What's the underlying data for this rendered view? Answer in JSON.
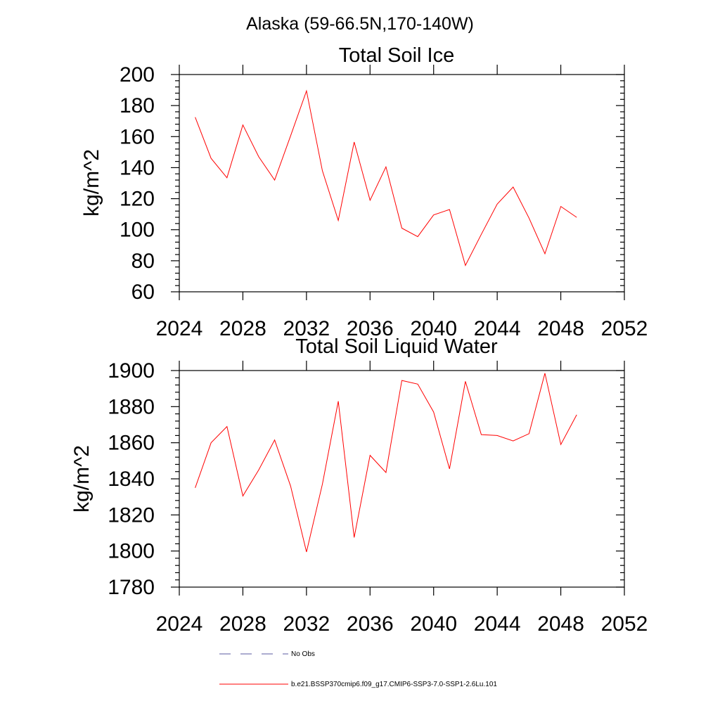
{
  "suptitle": "Alaska (59-66.5N,170-140W)",
  "chart_data": [
    {
      "type": "line",
      "title": "Total Soil Ice",
      "ylabel": "kg/m^2",
      "xlim": [
        2024,
        2052
      ],
      "ylim": [
        60,
        200
      ],
      "xticks": [
        2024,
        2028,
        2032,
        2036,
        2040,
        2044,
        2048,
        2052
      ],
      "yticks": [
        60,
        80,
        100,
        120,
        140,
        160,
        180,
        200
      ],
      "series": [
        {
          "name": "b.e21.BSSP370cmip6.f09_g17.CMIP6-SSP3-7.0-SSP1-2.6Lu.101",
          "color": "#ff0000",
          "x": [
            2025,
            2026,
            2027,
            2028,
            2029,
            2030,
            2031,
            2032,
            2033,
            2034,
            2035,
            2036,
            2037,
            2038,
            2039,
            2040,
            2041,
            2042,
            2043,
            2044,
            2045,
            2046,
            2047,
            2048,
            2049
          ],
          "y": [
            172.5,
            146,
            133.5,
            167.5,
            147,
            132,
            160.5,
            189.5,
            138,
            106,
            156.5,
            119,
            140.5,
            101,
            95.5,
            109.5,
            113,
            77,
            97,
            116.5,
            127.5,
            107.5,
            84.5,
            115,
            108
          ]
        }
      ]
    },
    {
      "type": "line",
      "title": "Total Soil Liquid Water",
      "ylabel": "kg/m^2",
      "xlim": [
        2024,
        2052
      ],
      "ylim": [
        1780,
        1900
      ],
      "xticks": [
        2024,
        2028,
        2032,
        2036,
        2040,
        2044,
        2048,
        2052
      ],
      "yticks": [
        1780,
        1800,
        1820,
        1840,
        1860,
        1880,
        1900
      ],
      "series": [
        {
          "name": "b.e21.BSSP370cmip6.f09_g17.CMIP6-SSP3-7.0-SSP1-2.6Lu.101",
          "color": "#ff0000",
          "x": [
            2025,
            2026,
            2027,
            2028,
            2029,
            2030,
            2031,
            2032,
            2033,
            2034,
            2035,
            2036,
            2037,
            2038,
            2039,
            2040,
            2041,
            2042,
            2043,
            2044,
            2045,
            2046,
            2047,
            2048,
            2049
          ],
          "y": [
            1835,
            1860,
            1869,
            1830.5,
            1845,
            1861.5,
            1836,
            1799.5,
            1837,
            1883,
            1807.5,
            1853,
            1843.5,
            1894.5,
            1892.5,
            1877,
            1845.5,
            1894,
            1864.5,
            1864,
            1861,
            1865,
            1898.5,
            1859,
            1875.5
          ]
        }
      ]
    }
  ],
  "legend": {
    "placement": "bottom",
    "items": [
      {
        "label": "No Obs",
        "color": "#5a5aa0",
        "style": "dashed"
      },
      {
        "label": "b.e21.BSSP370cmip6.f09_g17.CMIP6-SSP3-7.0-SSP1-2.6Lu.101",
        "color": "#ff0000",
        "style": "solid"
      }
    ]
  }
}
